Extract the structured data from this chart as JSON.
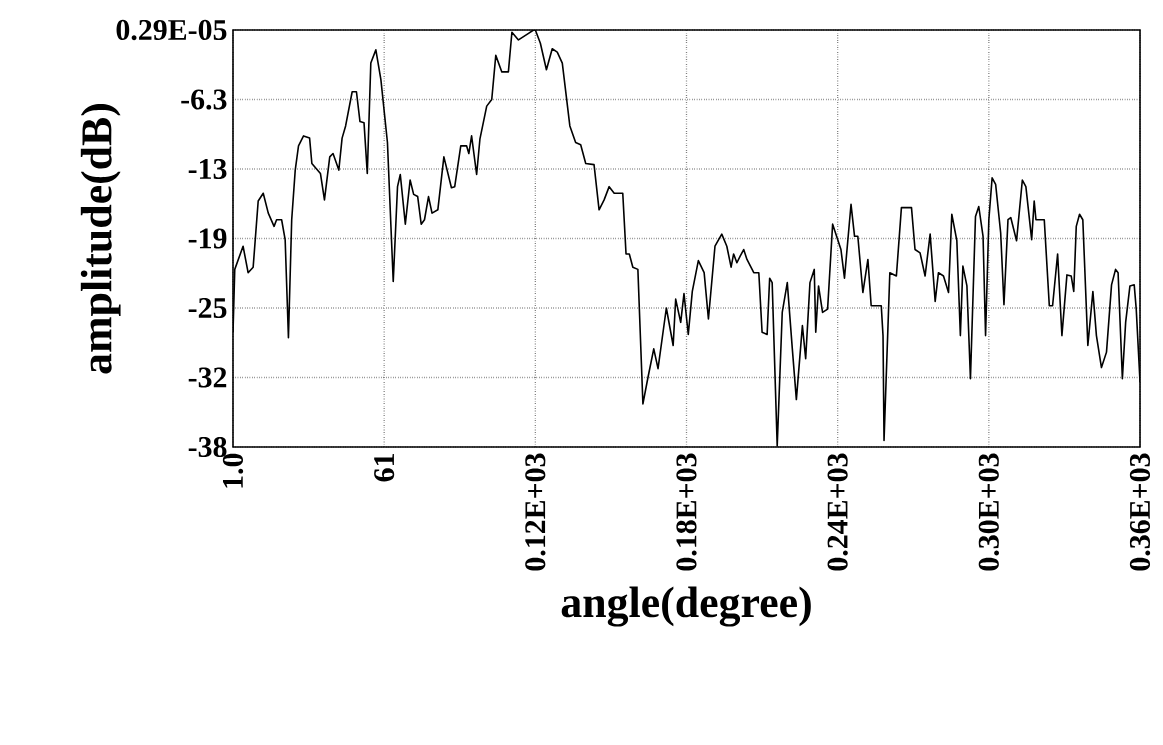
{
  "chart_data": {
    "type": "line",
    "xlabel": "angle(degree)",
    "ylabel": "amplitude(dB)",
    "xlim": [
      1,
      361
    ],
    "ylim": [
      -37.8,
      2.9e-06
    ],
    "xticks": [
      {
        "value": 1,
        "label": "1.0"
      },
      61,
      {
        "value": 121,
        "label": "0.12E+03"
      },
      {
        "value": 181,
        "label": "0.18E+03"
      },
      {
        "value": 241,
        "label": "0.24E+03"
      },
      {
        "value": 301,
        "label": "0.30E+03"
      },
      {
        "value": 361,
        "label": "0.36E+03"
      }
    ],
    "yticks": [
      {
        "value": 2.9e-06,
        "label": "0.29E-05"
      },
      -6.3,
      {
        "value": -12.6,
        "label": "-13"
      },
      {
        "value": -18.9,
        "label": "-19"
      },
      {
        "value": -25.2,
        "label": "-25"
      },
      {
        "value": -31.5,
        "label": "-32"
      },
      {
        "value": -37.8,
        "label": "-38"
      }
    ],
    "grid": true,
    "marker": "none",
    "line_style": "solid",
    "series": [
      {
        "color": "#000000",
        "x": [
          1,
          1.7,
          5,
          7,
          9,
          11,
          13,
          15,
          17.3,
          18.3,
          20.3,
          21.7,
          23,
          24.3,
          25.7,
          27,
          29,
          31.4,
          32.3,
          35.7,
          37.3,
          39.4,
          40.7,
          43,
          44.3,
          45.7,
          48.3,
          50,
          51.4,
          53,
          54.3,
          55.7,
          57.7,
          59.7,
          62.3,
          64.6,
          66.3,
          67.4,
          69.4,
          71.3,
          72.7,
          74.3,
          75.7,
          77,
          78.6,
          80,
          82.3,
          84.7,
          87.7,
          89,
          91.4,
          93.7,
          94.6,
          95.7,
          97.7,
          99,
          101.7,
          103.7,
          105.3,
          107.7,
          110.3,
          111.7,
          114.3,
          118.3,
          120.3,
          121,
          123,
          125.4,
          127.7,
          129.7,
          131.7,
          134.7,
          137,
          139,
          141,
          144.3,
          146.3,
          148.3,
          150.3,
          152.3,
          155.7,
          157,
          158.3,
          159.7,
          161.7,
          163.7,
          165.7,
          168,
          169.7,
          173,
          175.7,
          176.7,
          178.7,
          180,
          181.7,
          183.3,
          185.7,
          188,
          189.7,
          192.3,
          195,
          197,
          198.7,
          199.7,
          201,
          202.3,
          203.7,
          205,
          207.7,
          209.7,
          211,
          213,
          214,
          215,
          217,
          219,
          221,
          223,
          224.6,
          227,
          228.3,
          230,
          231.7,
          232.3,
          233.4,
          235,
          237,
          239,
          241,
          242.3,
          243.7,
          246.3,
          247.7,
          249,
          251,
          253,
          254.3,
          258.3,
          259,
          259.4,
          261.7,
          264.3,
          266.3,
          270.3,
          271.7,
          273.7,
          275.7,
          277.7,
          279.7,
          281,
          283,
          285,
          286.3,
          288.3,
          289.7,
          290.7,
          292.3,
          293.7,
          295.7,
          297,
          298.7,
          299.7,
          301,
          302.3,
          303.7,
          305.7,
          307,
          308.6,
          309.7,
          312,
          314.3,
          315.7,
          318,
          319,
          319.7,
          323,
          325,
          326.3,
          328.3,
          330,
          332,
          333.7,
          334.7,
          335.7,
          337,
          338.3,
          340.3,
          342.3,
          343.7,
          345.7,
          347.7,
          349.7,
          351.3,
          352.3,
          354,
          355.3,
          357,
          358.7,
          359.5,
          361
        ],
        "values": [
          -27.4,
          -21.7,
          -19.6,
          -22.0,
          -21.5,
          -15.5,
          -14.8,
          -16.6,
          -17.8,
          -17.2,
          -17.2,
          -19.0,
          -27.9,
          -17.2,
          -12.7,
          -10.5,
          -9.6,
          -9.8,
          -12.1,
          -13.0,
          -15.4,
          -11.5,
          -11.2,
          -12.7,
          -9.8,
          -8.7,
          -5.6,
          -5.6,
          -8.3,
          -8.4,
          -13.0,
          -3.0,
          -1.8,
          -4.5,
          -10.2,
          -22.8,
          -14.2,
          -13.1,
          -17.6,
          -13.6,
          -14.9,
          -15.1,
          -17.6,
          -17.2,
          -15.1,
          -16.6,
          -16.3,
          -11.5,
          -14.3,
          -14.2,
          -10.5,
          -10.5,
          -11.2,
          -9.6,
          -13.1,
          -9.9,
          -6.9,
          -6.3,
          -2.3,
          -3.8,
          -3.8,
          -0.2,
          -0.9,
          -0.3,
          0,
          0,
          -1.2,
          -3.6,
          -1.7,
          -2.0,
          -3.0,
          -8.7,
          -10.2,
          -10.4,
          -12.1,
          -12.2,
          -16.3,
          -15.4,
          -14.2,
          -14.8,
          -14.8,
          -20.3,
          -20.3,
          -21.5,
          -21.7,
          -33.9,
          -31.5,
          -28.9,
          -30.7,
          -25.2,
          -28.6,
          -24.4,
          -26.5,
          -23.9,
          -27.6,
          -23.7,
          -20.9,
          -22.0,
          -26.2,
          -19.6,
          -18.5,
          -19.6,
          -21.5,
          -20.3,
          -21.1,
          -20.5,
          -19.9,
          -20.8,
          -22.0,
          -22.0,
          -27.4,
          -27.6,
          -22.5,
          -22.9,
          -37.7,
          -25.6,
          -22.9,
          -28.9,
          -33.5,
          -26.8,
          -29.8,
          -22.9,
          -21.7,
          -27.4,
          -23.2,
          -25.6,
          -25.3,
          -17.6,
          -19.0,
          -19.9,
          -22.5,
          -15.8,
          -18.7,
          -18.7,
          -23.8,
          -20.8,
          -25.0,
          -25.0,
          -27.7,
          -37.2,
          -22.0,
          -22.3,
          -16.1,
          -16.1,
          -19.9,
          -20.2,
          -22.3,
          -18.5,
          -24.6,
          -22.0,
          -22.3,
          -23.8,
          -16.7,
          -19.1,
          -27.7,
          -21.4,
          -23.2,
          -31.6,
          -16.9,
          -16.0,
          -18.7,
          -27.7,
          -17.2,
          -13.4,
          -14.0,
          -18.4,
          -24.9,
          -17.2,
          -17.0,
          -19.1,
          -13.6,
          -14.2,
          -19.0,
          -15.5,
          -17.2,
          -17.2,
          -25.0,
          -25.0,
          -20.3,
          -27.7,
          -22.2,
          -22.3,
          -23.7,
          -17.8,
          -16.7,
          -17.2,
          -28.6,
          -23.7,
          -27.7,
          -30.6,
          -29.2,
          -23.1,
          -21.7,
          -22.0,
          -31.6,
          -26.5,
          -23.2,
          -23.1,
          -25.3,
          -31.9
        ]
      }
    ]
  }
}
